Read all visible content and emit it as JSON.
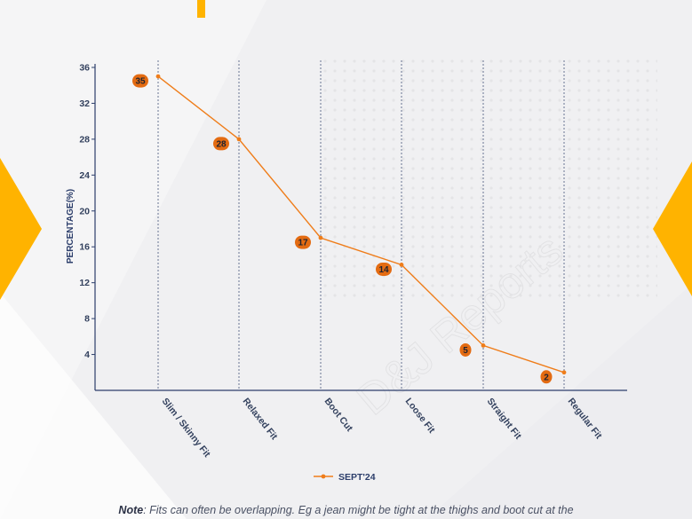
{
  "colors": {
    "line": "#ef7d1a",
    "label_fill": "#e36b12",
    "axis": "#2c3e6b",
    "tick_text": "#33415e",
    "accent_yellow": "#ffb300"
  },
  "watermark": "D&J Reports",
  "note": {
    "prefix": "Note",
    "text": ": Fits can often be overlapping. Eg a jean might be tight at the thighs and boot cut at the"
  },
  "chart_data": {
    "type": "line",
    "ylabel": "PERCENTAGE(%)",
    "xlabel": "",
    "ylim": [
      0,
      36
    ],
    "yticks": [
      4,
      8,
      12,
      16,
      20,
      24,
      28,
      32,
      36
    ],
    "categories": [
      "Slim / Skinny Fit",
      "Relaxed Fit",
      "Boot Cut",
      "Loose Fit",
      "Straight Fit",
      "Regular Fit"
    ],
    "series": [
      {
        "name": "SEPT'24",
        "values": [
          35,
          28,
          17,
          14,
          5,
          2
        ]
      }
    ],
    "data_labels": true,
    "vertical_gridlines": "dashed",
    "legend_position": "bottom-center"
  }
}
